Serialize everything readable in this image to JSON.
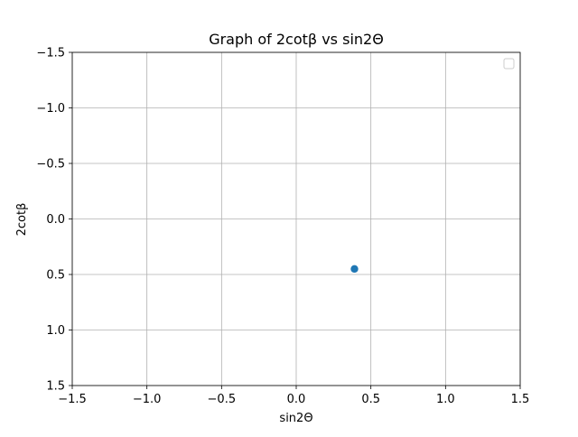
{
  "chart_data": {
    "type": "scatter",
    "title": "Graph of 2cotβ vs sin2Θ",
    "xlabel": "sin2Θ",
    "ylabel": "2cotβ",
    "xlim": [
      -1.5,
      1.5
    ],
    "ylim": [
      1.5,
      -1.5
    ],
    "y_inverted": true,
    "xticks": [
      "−1.5",
      "−1.0",
      "−0.5",
      "0.0",
      "0.5",
      "1.0",
      "1.5"
    ],
    "yticks": [
      "−1.5",
      "−1.0",
      "−0.5",
      "0.0",
      "0.5",
      "1.0",
      "1.5"
    ],
    "grid": true,
    "legend": {
      "placement": "top-right",
      "entries": []
    },
    "series": [
      {
        "color": "#1f77b4",
        "points": [
          {
            "x": 0.39,
            "y": 0.45
          }
        ]
      }
    ]
  }
}
